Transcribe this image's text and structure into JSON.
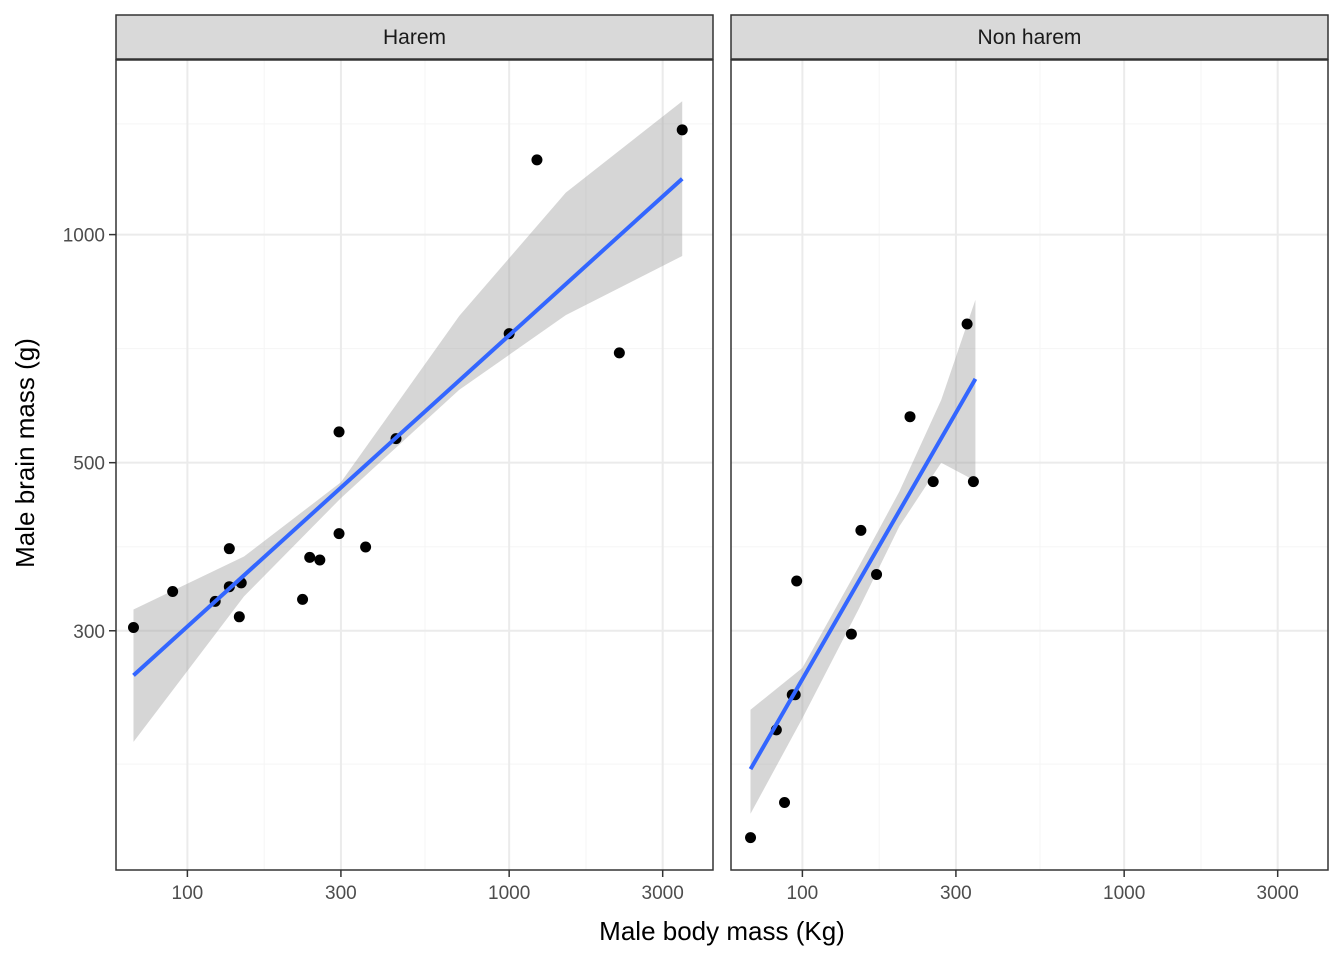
{
  "chart_data": {
    "type": "scatter",
    "xlabel": "Male body mass (Kg)",
    "ylabel": "Male brain mass (g)",
    "x_scale": "log10",
    "y_scale": "log10",
    "xlim": [
      60,
      4300
    ],
    "ylim": [
      145,
      1700
    ],
    "x_ticks": [
      100,
      300,
      1000,
      3000
    ],
    "x_tick_labels": [
      "100",
      "300",
      "1000",
      "3000"
    ],
    "y_ticks": [
      300,
      500,
      1000
    ],
    "y_tick_labels": [
      "300",
      "500",
      "1000"
    ],
    "grid": true,
    "smoother": "linear fit (lm) with 95% confidence band",
    "colors": {
      "points": "#000000",
      "fit_line": "#3366ff",
      "ribbon": "#999999",
      "strip_fill": "#d9d9d9",
      "grid_major": "#ebebeb",
      "grid_minor": "#f5f5f5",
      "panel_border": "#333333"
    },
    "panels": [
      {
        "strip": "Harem",
        "points": [
          {
            "x": 68,
            "y": 303
          },
          {
            "x": 90,
            "y": 338
          },
          {
            "x": 122,
            "y": 328
          },
          {
            "x": 135,
            "y": 385
          },
          {
            "x": 135,
            "y": 343
          },
          {
            "x": 147,
            "y": 347
          },
          {
            "x": 145,
            "y": 313
          },
          {
            "x": 228,
            "y": 330
          },
          {
            "x": 240,
            "y": 375
          },
          {
            "x": 258,
            "y": 372
          },
          {
            "x": 296,
            "y": 549
          },
          {
            "x": 296,
            "y": 403
          },
          {
            "x": 358,
            "y": 387
          },
          {
            "x": 445,
            "y": 538
          },
          {
            "x": 1000,
            "y": 740
          },
          {
            "x": 1220,
            "y": 1255
          },
          {
            "x": 2200,
            "y": 698
          },
          {
            "x": 3450,
            "y": 1375
          }
        ],
        "fit": {
          "x": [
            68,
            3450
          ],
          "y": [
            262,
            1185
          ]
        },
        "ribbon": {
          "x": [
            68,
            150,
            300,
            700,
            1500,
            3450
          ],
          "lower": [
            214,
            333,
            449,
            624,
            783,
            937
          ],
          "upper": [
            320,
            376,
            471,
            781,
            1136,
            1500
          ]
        }
      },
      {
        "strip": "Non harem",
        "points": [
          {
            "x": 69,
            "y": 160
          },
          {
            "x": 83,
            "y": 222
          },
          {
            "x": 88,
            "y": 178
          },
          {
            "x": 93,
            "y": 247
          },
          {
            "x": 95,
            "y": 247
          },
          {
            "x": 96,
            "y": 349
          },
          {
            "x": 142,
            "y": 297
          },
          {
            "x": 152,
            "y": 407
          },
          {
            "x": 170,
            "y": 356
          },
          {
            "x": 216,
            "y": 575
          },
          {
            "x": 255,
            "y": 472
          },
          {
            "x": 325,
            "y": 762
          },
          {
            "x": 340,
            "y": 472
          }
        ],
        "fit": {
          "x": [
            69,
            345
          ],
          "y": [
            197,
            645
          ]
        },
        "ribbon": {
          "x": [
            69,
            100,
            150,
            200,
            270,
            345
          ],
          "lower": [
            172,
            230,
            321,
            412,
            500,
            473
          ],
          "upper": [
            236,
            268,
            365,
            458,
            605,
            820
          ]
        }
      }
    ]
  }
}
